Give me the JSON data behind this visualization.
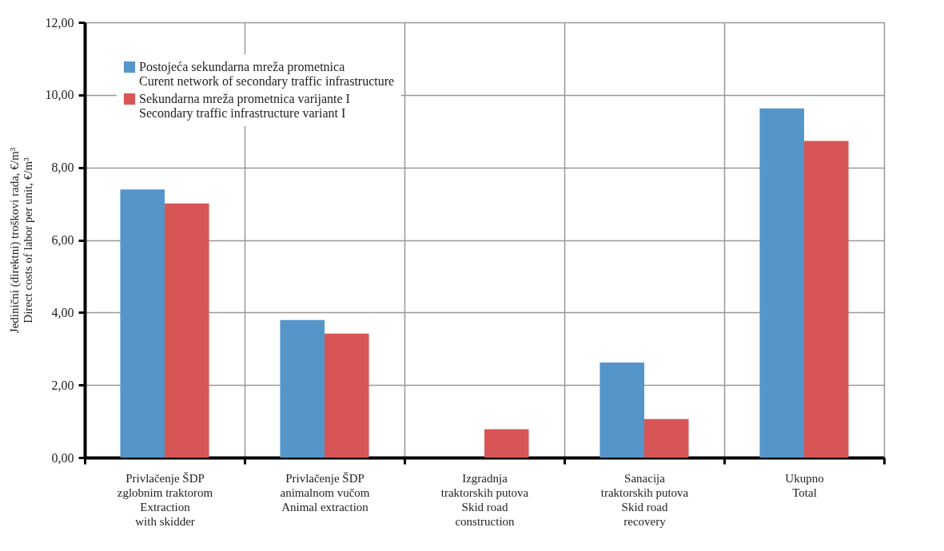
{
  "chart_data": {
    "type": "bar",
    "ylabel": "Jedinični (direktni) troškovi rada, €/m³\nDirect costs of labor per unit, €/m³",
    "categories": [
      "Privlačenje ŠDP\nzglobnim traktorom\nExtraction\nwith skidder",
      "Privlačenje ŠDP\nanimalnom vučom\nAnimal extraction",
      "Izgradnja\ntraktorskih putova\nSkid road\nconstruction",
      "Sanacija\ntraktorskih putova\nSkid road\nrecovery",
      "Ukupno\nTotal"
    ],
    "series": [
      {
        "name": "Postojeća sekundarna mreža prometnica\nCurent network of secondary traffic infrastructure",
        "color": "#5495ca",
        "values": [
          7.39,
          3.79,
          0,
          2.62,
          9.63
        ]
      },
      {
        "name": "Sekundarna mreža prometnica varijante I\nSecondary traffic infrastructure variant I",
        "color": "#d75655",
        "values": [
          7.01,
          3.42,
          0.78,
          1.06,
          8.73
        ]
      }
    ],
    "ylim": [
      0,
      12
    ],
    "yticks": [
      {
        "value": 0,
        "label": "0,00"
      },
      {
        "value": 2,
        "label": "2,00"
      },
      {
        "value": 4,
        "label": "4,00"
      },
      {
        "value": 6,
        "label": "6,00"
      },
      {
        "value": 8,
        "label": "8,00"
      },
      {
        "value": 10,
        "label": "10,00"
      },
      {
        "value": 12,
        "label": "12,00"
      }
    ],
    "grid": true,
    "legend": "top left"
  }
}
